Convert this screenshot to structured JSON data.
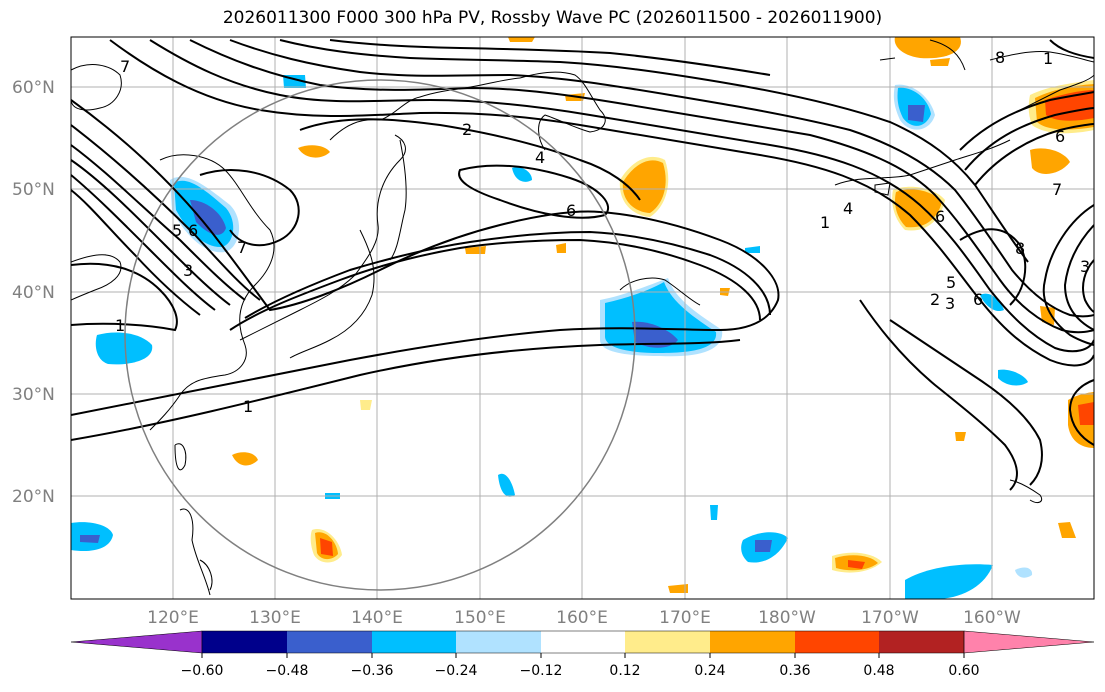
{
  "title": "2026011300 F000 300 hPa PV, Rossby Wave PC (2026011500 - 2026011900)",
  "lat_labels": [
    "60°N",
    "50°N",
    "40°N",
    "30°N",
    "20°N"
  ],
  "lon_labels": [
    "120°E",
    "130°E",
    "140°E",
    "150°E",
    "160°E",
    "170°E",
    "180°W",
    "170°W",
    "160°W"
  ],
  "contour_labels": [
    "7",
    "2",
    "4",
    "6",
    "1",
    "3",
    "5",
    "6",
    "7",
    "1",
    "1",
    "4",
    "1",
    "6",
    "8",
    "3",
    "5",
    "6",
    "8",
    "7",
    "6",
    "2",
    "3"
  ],
  "colorbar": {
    "ticks": [
      "−0.60",
      "−0.48",
      "−0.36",
      "−0.24",
      "−0.12",
      "0.12",
      "0.24",
      "0.36",
      "0.48",
      "0.60"
    ],
    "colors": [
      "#9932cc",
      "#00008b",
      "#3a5fcd",
      "#00bfff",
      "#b0e2ff",
      "#ffffff",
      "#ffec8b",
      "#ffa500",
      "#ff4500",
      "#b22222",
      "#ff82ab"
    ]
  }
}
